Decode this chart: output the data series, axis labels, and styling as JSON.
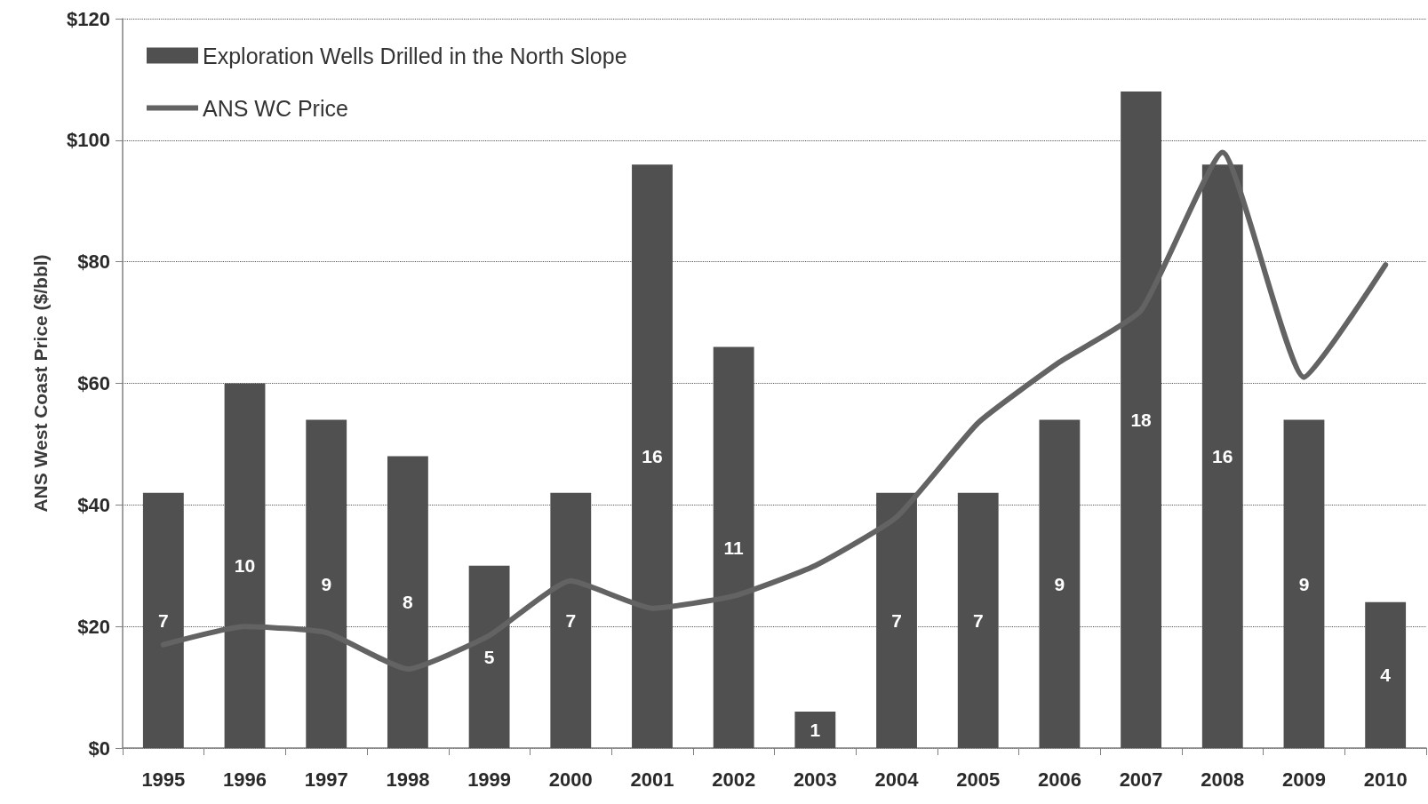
{
  "chart_data": {
    "type": "bar",
    "ylabel": "ANS West Coast Price ($/bbl)",
    "categories": [
      "1995",
      "1996",
      "1997",
      "1998",
      "1999",
      "2000",
      "2001",
      "2002",
      "2003",
      "2004",
      "2005",
      "2006",
      "2007",
      "2008",
      "2009",
      "2010"
    ],
    "series": [
      {
        "name": "Exploration Wells Drilled in the North Slope",
        "axis": "y2",
        "color": "#505050",
        "values": [
          7,
          10,
          9,
          8,
          5,
          7,
          16,
          11,
          1,
          7,
          7,
          9,
          18,
          16,
          9,
          4
        ],
        "value_labels": [
          "7",
          "10",
          "9",
          "8",
          "5",
          "7",
          "16",
          "11",
          "1",
          "7",
          "7",
          "9",
          "18",
          "16",
          "9",
          "4"
        ]
      },
      {
        "name": "ANS WC Price",
        "type": "line",
        "color": "#636363",
        "values": [
          17,
          20,
          19,
          13,
          18.5,
          27.5,
          23,
          25,
          30,
          38,
          53.5,
          63.5,
          72,
          98,
          61,
          79.5
        ]
      }
    ],
    "ylim": [
      0,
      120
    ],
    "yticks": [
      {
        "value": 0,
        "label": "$0"
      },
      {
        "value": 20,
        "label": "$20"
      },
      {
        "value": 40,
        "label": "$40"
      },
      {
        "value": 60,
        "label": "$60"
      },
      {
        "value": 80,
        "label": "$80"
      },
      {
        "value": 100,
        "label": "$100"
      },
      {
        "value": 120,
        "label": "$120"
      }
    ],
    "y2lim": [
      0,
      20
    ],
    "grid": "y",
    "legend": "top left",
    "marker": "none",
    "line_style": "solid"
  }
}
